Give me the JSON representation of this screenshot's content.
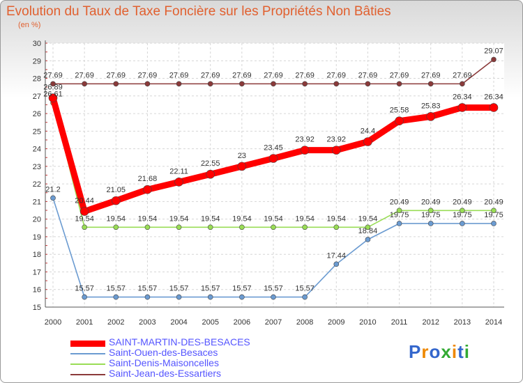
{
  "chart_data": {
    "type": "line",
    "title": "Evolution du Taux de Taxe Foncière sur les Propriétés Non Bâties",
    "subtitle": "(en %)",
    "x": [
      "2000",
      "2001",
      "2002",
      "2003",
      "2004",
      "2005",
      "2006",
      "2007",
      "2008",
      "2009",
      "2010",
      "2011",
      "2012",
      "2013",
      "2014"
    ],
    "ylim": [
      15,
      30
    ],
    "yticks": [
      "15",
      "16",
      "17",
      "18",
      "19",
      "20",
      "21",
      "22",
      "23",
      "24",
      "25",
      "26",
      "27",
      "28",
      "29",
      "30"
    ],
    "grid": true,
    "legend_position": "bottom-left",
    "series": [
      {
        "name": "SAINT-MARTIN-DES-BESACES",
        "color": "#ff0000",
        "emphasis": true,
        "values": [
          26.89,
          20.44,
          21.05,
          21.68,
          22.11,
          22.55,
          23,
          23.45,
          23.92,
          23.92,
          24.4,
          25.58,
          25.83,
          26.34,
          26.34
        ],
        "labels": [
          "26.89",
          "20.44",
          "21.05",
          "21.68",
          "22.11",
          "22.55",
          "23",
          "23.45",
          "23.92",
          "23.92",
          "24.4",
          "25.58",
          "25.83",
          "26.34",
          "26.34"
        ]
      },
      {
        "name": "Saint-Ouen-des-Besaces",
        "color": "#6b9bd1",
        "values": [
          21.2,
          15.57,
          15.57,
          15.57,
          15.57,
          15.57,
          15.57,
          15.57,
          15.57,
          17.44,
          18.84,
          19.75,
          19.75,
          19.75,
          19.75
        ],
        "labels": [
          "21.2",
          "15.57",
          "15.57",
          "15.57",
          "15.57",
          "15.57",
          "15.57",
          "15.57",
          "15.57",
          "17.44",
          "18.84",
          "19.75",
          "19.75",
          "19.75",
          "19.75"
        ]
      },
      {
        "name": "Saint-Denis-Maisoncelles",
        "color": "#99dd55",
        "values": [
          26.61,
          19.54,
          19.54,
          19.54,
          19.54,
          19.54,
          19.54,
          19.54,
          19.54,
          19.54,
          19.54,
          20.49,
          20.49,
          20.49,
          20.49
        ],
        "labels": [
          "26.61",
          "19.54",
          "19.54",
          "19.54",
          "19.54",
          "19.54",
          "19.54",
          "19.54",
          "19.54",
          "19.54",
          "19.54",
          "20.49",
          "20.49",
          "20.49",
          "20.49"
        ]
      },
      {
        "name": "Saint-Jean-des-Essartiers",
        "color": "#8b3a3a",
        "values": [
          27.69,
          27.69,
          27.69,
          27.69,
          27.69,
          27.69,
          27.69,
          27.69,
          27.69,
          27.69,
          27.69,
          27.69,
          27.69,
          27.69,
          29.07
        ],
        "labels": [
          "27.69",
          "27.69",
          "27.69",
          "27.69",
          "27.69",
          "27.69",
          "27.69",
          "27.69",
          "27.69",
          "27.69",
          "27.69",
          "27.69",
          "27.69",
          "27.69",
          "29.07"
        ]
      }
    ]
  },
  "legend_text_color": "#5555ff",
  "logo": {
    "letters": [
      "P",
      "r",
      "o",
      "x",
      "i",
      "t",
      "i"
    ],
    "colors": [
      "#3366cc",
      "#ee8800",
      "#3366cc",
      "#33aa33",
      "#ee8800",
      "#3366cc",
      "#33aa33"
    ]
  }
}
